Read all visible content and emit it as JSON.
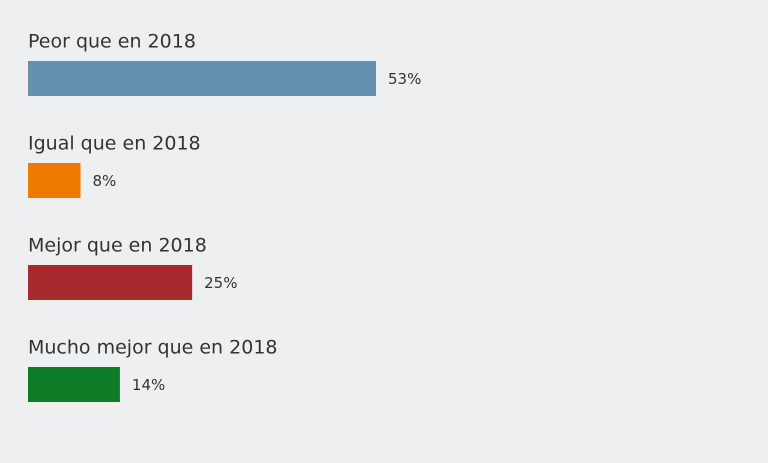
{
  "chart_data": {
    "type": "bar",
    "categories": [
      "Peor que en 2018",
      "Igual que en 2018",
      "Mejor que en 2018",
      "Mucho mejor que en 2018"
    ],
    "values": [
      53,
      8,
      25,
      14
    ],
    "value_labels": [
      "53%",
      "8%",
      "25%",
      "14%"
    ],
    "colors": [
      "#6590b0",
      "#ee7a00",
      "#a62a2e",
      "#0e7c26"
    ]
  }
}
